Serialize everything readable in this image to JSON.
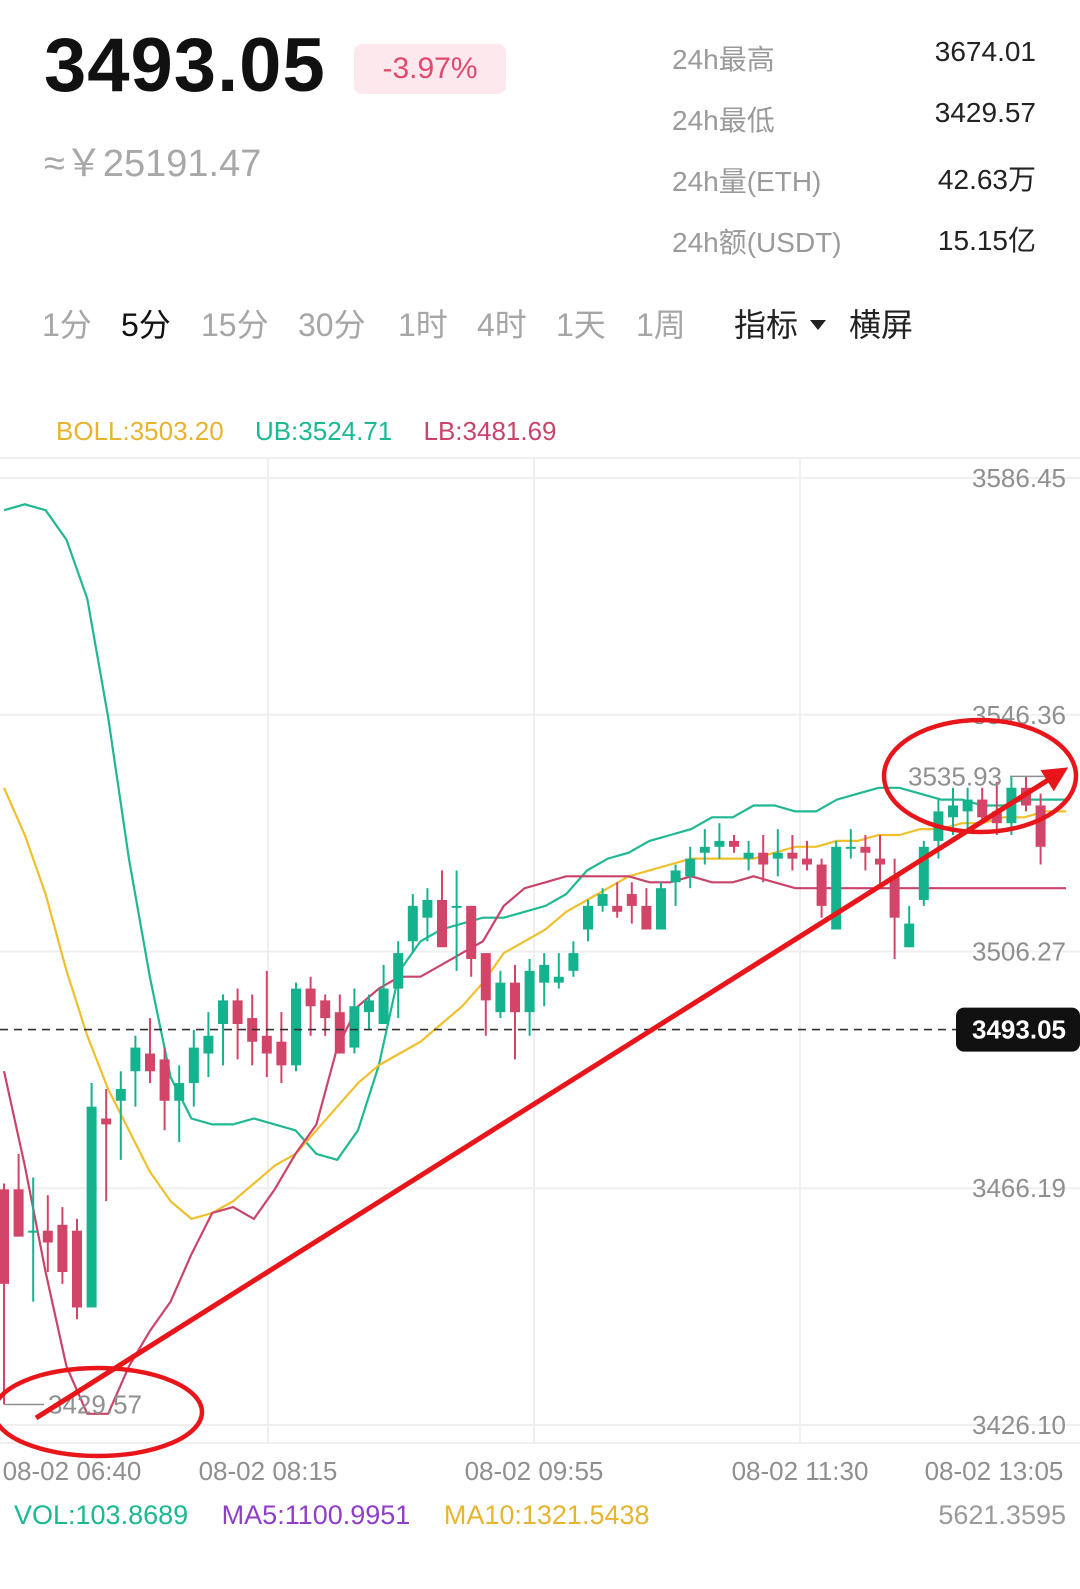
{
  "ticker": {
    "price": "3493.05",
    "change": "-3.97%",
    "cny_price": "≈￥25191.47",
    "stats": [
      {
        "label": "24h最高",
        "value": "3674.01"
      },
      {
        "label": "24h最低",
        "value": "3429.57"
      },
      {
        "label": "24h量(ETH)",
        "value": "42.63万"
      },
      {
        "label": "24h额(USDT)",
        "value": "15.15亿"
      }
    ]
  },
  "timeframes": [
    "1分",
    "5分",
    "15分",
    "30分",
    "1时",
    "4时",
    "1天",
    "1周"
  ],
  "active_timeframe": "5分",
  "indicator_menu": "指标",
  "landscape_button": "横屏",
  "indicators": {
    "boll": "BOLL:3503.20",
    "ub": "UB:3524.71",
    "lb": "LB:3481.69"
  },
  "volume": {
    "vol": "VOL:103.8689",
    "ma5": "MA5:1100.9951",
    "ma10": "MA10:1321.5438",
    "max": "5621.3595"
  },
  "colors": {
    "up": "#14b38e",
    "down": "#d24468",
    "boll_mid": "#f0c02c",
    "boll_upper": "#1fb892",
    "boll_lower": "#c9446a",
    "annotation": "#e8161b"
  },
  "chart_data": {
    "type": "candlestick",
    "y_ticks": [
      "3586.45",
      "3546.36",
      "3506.27",
      "3466.19",
      "3426.10"
    ],
    "ylim": [
      3426.1,
      3586.45
    ],
    "x_ticks": [
      "08-02 06:40",
      "08-02 08:15",
      "08-02 09:55",
      "08-02 11:30",
      "08-02 13:05"
    ],
    "current_price": 3493.05,
    "current_price_label": "3493.05",
    "high_marker": {
      "value": 3535.93,
      "label": "3535.93"
    },
    "low_marker": {
      "value": 3429.57,
      "label": "3429.57"
    },
    "candles": [
      {
        "o": 3466,
        "h": 3467,
        "l": 3429.6,
        "c": 3450
      },
      {
        "o": 3466,
        "h": 3472,
        "l": 3458,
        "c": 3458
      },
      {
        "o": 3459,
        "h": 3468,
        "l": 3447,
        "c": 3459
      },
      {
        "o": 3459,
        "h": 3465,
        "l": 3452,
        "c": 3457
      },
      {
        "o": 3460,
        "h": 3463,
        "l": 3450,
        "c": 3452
      },
      {
        "o": 3459,
        "h": 3461,
        "l": 3444,
        "c": 3446
      },
      {
        "o": 3446,
        "h": 3484,
        "l": 3446,
        "c": 3480
      },
      {
        "o": 3478,
        "h": 3483,
        "l": 3464,
        "c": 3477
      },
      {
        "o": 3481,
        "h": 3486,
        "l": 3471,
        "c": 3483
      },
      {
        "o": 3486,
        "h": 3492,
        "l": 3480,
        "c": 3490
      },
      {
        "o": 3489,
        "h": 3495,
        "l": 3484,
        "c": 3486
      },
      {
        "o": 3488,
        "h": 3490,
        "l": 3476,
        "c": 3481
      },
      {
        "o": 3481,
        "h": 3487,
        "l": 3474,
        "c": 3484
      },
      {
        "o": 3484,
        "h": 3493,
        "l": 3480,
        "c": 3490
      },
      {
        "o": 3489,
        "h": 3496,
        "l": 3485,
        "c": 3492
      },
      {
        "o": 3494,
        "h": 3499,
        "l": 3487,
        "c": 3498
      },
      {
        "o": 3498,
        "h": 3500,
        "l": 3488,
        "c": 3494
      },
      {
        "o": 3495,
        "h": 3499,
        "l": 3487,
        "c": 3491
      },
      {
        "o": 3492,
        "h": 3503,
        "l": 3485,
        "c": 3489
      },
      {
        "o": 3491,
        "h": 3496,
        "l": 3484,
        "c": 3487
      },
      {
        "o": 3487,
        "h": 3501,
        "l": 3486,
        "c": 3500
      },
      {
        "o": 3500,
        "h": 3502,
        "l": 3492,
        "c": 3497
      },
      {
        "o": 3498,
        "h": 3499,
        "l": 3492,
        "c": 3495
      },
      {
        "o": 3496,
        "h": 3499,
        "l": 3489,
        "c": 3489
      },
      {
        "o": 3490,
        "h": 3500,
        "l": 3489,
        "c": 3497
      },
      {
        "o": 3496,
        "h": 3499,
        "l": 3493,
        "c": 3498
      },
      {
        "o": 3494,
        "h": 3504,
        "l": 3494,
        "c": 3500
      },
      {
        "o": 3500,
        "h": 3508,
        "l": 3495,
        "c": 3506
      },
      {
        "o": 3508,
        "h": 3516,
        "l": 3506,
        "c": 3514
      },
      {
        "o": 3512,
        "h": 3517,
        "l": 3508,
        "c": 3515
      },
      {
        "o": 3515,
        "h": 3520,
        "l": 3508,
        "c": 3507
      },
      {
        "o": 3514,
        "h": 3520,
        "l": 3503,
        "c": 3514
      },
      {
        "o": 3514,
        "h": 3514,
        "l": 3502,
        "c": 3505
      },
      {
        "o": 3506,
        "h": 3506,
        "l": 3492,
        "c": 3498
      },
      {
        "o": 3496,
        "h": 3503,
        "l": 3495,
        "c": 3501
      },
      {
        "o": 3501,
        "h": 3504,
        "l": 3488,
        "c": 3496
      },
      {
        "o": 3496,
        "h": 3505,
        "l": 3492,
        "c": 3503
      },
      {
        "o": 3501,
        "h": 3506,
        "l": 3497,
        "c": 3504
      },
      {
        "o": 3501,
        "h": 3506,
        "l": 3500,
        "c": 3502
      },
      {
        "o": 3503,
        "h": 3508,
        "l": 3502,
        "c": 3506
      },
      {
        "o": 3510,
        "h": 3515,
        "l": 3508,
        "c": 3514
      },
      {
        "o": 3514,
        "h": 3517,
        "l": 3513,
        "c": 3516
      },
      {
        "o": 3514,
        "h": 3518,
        "l": 3512,
        "c": 3513
      },
      {
        "o": 3516,
        "h": 3518,
        "l": 3511,
        "c": 3514
      },
      {
        "o": 3514,
        "h": 3517,
        "l": 3510,
        "c": 3510
      },
      {
        "o": 3510,
        "h": 3518,
        "l": 3510,
        "c": 3517
      },
      {
        "o": 3518,
        "h": 3521,
        "l": 3514,
        "c": 3520
      },
      {
        "o": 3519,
        "h": 3524,
        "l": 3517,
        "c": 3522
      },
      {
        "o": 3523,
        "h": 3527,
        "l": 3521,
        "c": 3524
      },
      {
        "o": 3524,
        "h": 3528,
        "l": 3522,
        "c": 3525
      },
      {
        "o": 3525,
        "h": 3526,
        "l": 3523,
        "c": 3524
      },
      {
        "o": 3522,
        "h": 3525,
        "l": 3520,
        "c": 3523
      },
      {
        "o": 3523,
        "h": 3526,
        "l": 3518,
        "c": 3521
      },
      {
        "o": 3522,
        "h": 3527,
        "l": 3519,
        "c": 3523
      },
      {
        "o": 3523,
        "h": 3526,
        "l": 3520,
        "c": 3522
      },
      {
        "o": 3522,
        "h": 3525,
        "l": 3520,
        "c": 3521
      },
      {
        "o": 3521,
        "h": 3522,
        "l": 3512,
        "c": 3514
      },
      {
        "o": 3510,
        "h": 3525,
        "l": 3510,
        "c": 3524
      },
      {
        "o": 3524,
        "h": 3527,
        "l": 3522,
        "c": 3524
      },
      {
        "o": 3524,
        "h": 3526,
        "l": 3520,
        "c": 3523
      },
      {
        "o": 3522,
        "h": 3526,
        "l": 3517,
        "c": 3521
      },
      {
        "o": 3519,
        "h": 3522,
        "l": 3505,
        "c": 3512
      },
      {
        "o": 3507,
        "h": 3514,
        "l": 3507,
        "c": 3511
      },
      {
        "o": 3515,
        "h": 3525,
        "l": 3514,
        "c": 3524
      },
      {
        "o": 3525,
        "h": 3532,
        "l": 3522,
        "c": 3530
      },
      {
        "o": 3529,
        "h": 3534,
        "l": 3526,
        "c": 3531
      },
      {
        "o": 3530,
        "h": 3534,
        "l": 3527,
        "c": 3532
      },
      {
        "o": 3532,
        "h": 3534,
        "l": 3528,
        "c": 3529
      },
      {
        "o": 3530,
        "h": 3535,
        "l": 3526,
        "c": 3528
      },
      {
        "o": 3528,
        "h": 3535.9,
        "l": 3526,
        "c": 3534
      },
      {
        "o": 3534,
        "h": 3536,
        "l": 3530,
        "c": 3531
      },
      {
        "o": 3531,
        "h": 3533,
        "l": 3521,
        "c": 3524
      }
    ],
    "boll_upper": [
      3581,
      3582,
      3581,
      3576,
      3566,
      3546,
      3522,
      3502,
      3485,
      3478,
      3477,
      3477,
      3478,
      3477,
      3476,
      3472,
      3471,
      3476,
      3487,
      3503,
      3508,
      3510,
      3511,
      3512,
      3512,
      3513,
      3514,
      3516,
      3520,
      3522,
      3523,
      3525,
      3526,
      3527,
      3529,
      3529,
      3531,
      3531,
      3530,
      3530,
      3532,
      3533,
      3534,
      3534,
      3533,
      3532,
      3532,
      3531,
      3531,
      3532,
      3532,
      3532
    ],
    "boll_mid": [
      3534,
      3526,
      3516,
      3503,
      3492,
      3483,
      3476,
      3469,
      3464,
      3461,
      3462,
      3464,
      3467,
      3470,
      3472,
      3476,
      3480,
      3484,
      3487,
      3489,
      3491,
      3494,
      3497,
      3501,
      3506,
      3508,
      3510,
      3513,
      3515,
      3517,
      3519,
      3520,
      3521,
      3522,
      3522,
      3522,
      3522,
      3523,
      3524,
      3524,
      3525,
      3525,
      3526,
      3526,
      3527,
      3527,
      3528,
      3528,
      3529,
      3529,
      3530,
      3530
    ],
    "boll_lower": [
      3486,
      3470,
      3452,
      3436,
      3428,
      3428,
      3436,
      3442,
      3447,
      3455,
      3462,
      3463,
      3461,
      3466,
      3472,
      3477,
      3490,
      3497,
      3500,
      3502,
      3502,
      3504,
      3506,
      3508,
      3514,
      3517,
      3518,
      3519,
      3519,
      3519,
      3519,
      3518,
      3518,
      3519,
      3518,
      3518,
      3519,
      3518,
      3517,
      3517,
      3517,
      3517,
      3517,
      3517,
      3517,
      3517,
      3517,
      3517,
      3517,
      3517,
      3517,
      3517
    ]
  }
}
